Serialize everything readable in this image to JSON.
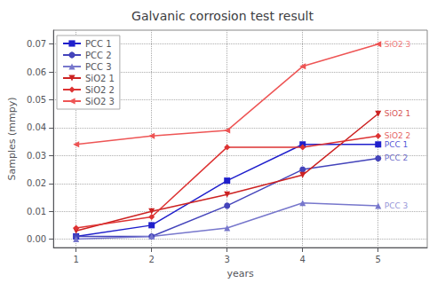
{
  "chart_data": {
    "type": "line",
    "title": "Galvanic corrosion test result",
    "xlabel": "years",
    "ylabel": "Samples (mmpy)",
    "x": [
      1,
      2,
      3,
      4,
      5
    ],
    "series": [
      {
        "name": "PCC 1",
        "color": "#1f1fcc",
        "marker": "square",
        "values": [
          0.001,
          0.005,
          0.021,
          0.034,
          0.034
        ]
      },
      {
        "name": "PCC 2",
        "color": "#4444bb",
        "marker": "circle",
        "values": [
          0.001,
          0.001,
          0.012,
          0.025,
          0.029
        ]
      },
      {
        "name": "PCC 3",
        "color": "#7777cc",
        "marker": "triangle-up",
        "values": [
          0.0,
          0.001,
          0.004,
          0.013,
          0.012
        ]
      },
      {
        "name": "SiO2 1",
        "color": "#cc2222",
        "marker": "triangle-down",
        "values": [
          0.003,
          0.01,
          0.016,
          0.023,
          0.045
        ]
      },
      {
        "name": "SiO2 2",
        "color": "#dd3333",
        "marker": "diamond",
        "values": [
          0.004,
          0.008,
          0.033,
          0.033,
          0.037
        ]
      },
      {
        "name": "SiO2 3",
        "color": "#ee5555",
        "marker": "triangle-left",
        "values": [
          0.034,
          0.037,
          0.039,
          0.062,
          0.07
        ]
      }
    ],
    "annotations": [
      {
        "text": "SiO2 3",
        "x": 5,
        "y": 0.07,
        "color": "#ee5555"
      },
      {
        "text": "SiO2 1",
        "x": 5,
        "y": 0.045,
        "color": "#cc2222"
      },
      {
        "text": "SiO2 2",
        "x": 5,
        "y": 0.037,
        "color": "#dd3333"
      },
      {
        "text": "PCC 1",
        "x": 5,
        "y": 0.034,
        "color": "#1f1fcc"
      },
      {
        "text": "PCC 2",
        "x": 5,
        "y": 0.029,
        "color": "#4444bb"
      },
      {
        "text": "PCC 3",
        "x": 5,
        "y": 0.012,
        "color": "#7777cc"
      }
    ],
    "xlim": [
      0.7,
      5.65
    ],
    "xticks": [
      1,
      2,
      3,
      4,
      5
    ],
    "ylim": [
      -0.003,
      0.075
    ],
    "yticks": [
      {
        "value": 0,
        "label": "0.00"
      },
      0.01,
      0.02,
      0.03,
      0.04,
      0.05,
      0.06,
      0.07
    ],
    "grid": true,
    "legend": "upper left"
  }
}
